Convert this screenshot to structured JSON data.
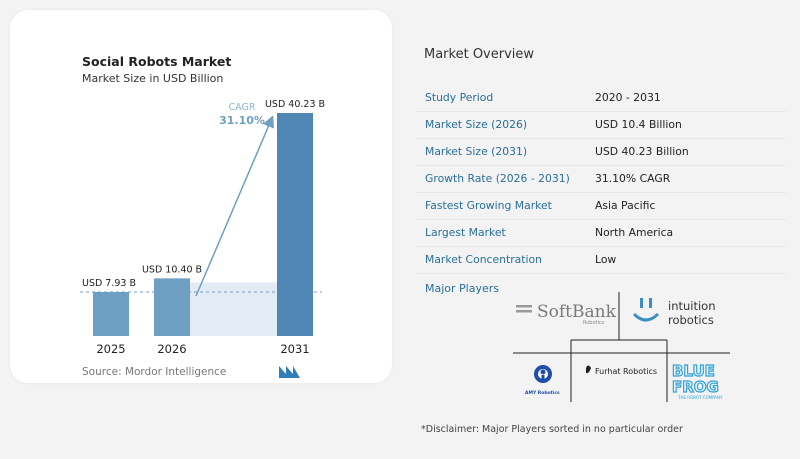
{
  "chart": {
    "title": "Social Robots Market",
    "subtitle": "Market Size in USD Billion",
    "source": "Source:  Mordor Intelligence",
    "cagr_label": "CAGR",
    "cagr_value": "31.10%"
  },
  "chart_data": {
    "type": "bar",
    "categories": [
      "2025",
      "2026",
      "2031"
    ],
    "values": [
      7.93,
      10.4,
      40.23
    ],
    "data_labels": [
      "USD 7.93 B",
      "USD 10.40 B",
      "USD 40.23 B"
    ],
    "title": "Social Robots Market",
    "subtitle": "Market Size in USD Billion",
    "xlabel": "",
    "ylabel": "",
    "annotation": "CAGR 31.10%",
    "colors": {
      "bar_light": "#6f9fc2",
      "bar_dark": "#4f86b3",
      "arrow": "#6f9fc2",
      "cagr_text": "#6f9fc2"
    }
  },
  "overview": {
    "title": "Market Overview",
    "rows": [
      {
        "key": "Study Period",
        "value": "2020 - 2031"
      },
      {
        "key": "Market Size (2026)",
        "value": "USD 10.4 Billion"
      },
      {
        "key": "Market Size (2031)",
        "value": "USD 40.23 Billion"
      },
      {
        "key": "Growth Rate (2026 - 2031)",
        "value": "31.10% CAGR"
      },
      {
        "key": "Fastest Growing Market",
        "value": "Asia Pacific"
      },
      {
        "key": "Largest Market",
        "value": "North America"
      },
      {
        "key": "Market Concentration",
        "value": "Low"
      }
    ]
  },
  "players": {
    "title": "Major Players",
    "softbank": "SoftBank",
    "softbank_sub": "Robotics",
    "intuition_1": "intuition",
    "intuition_2": "robotics",
    "amy": "AMY Robotics",
    "furhat": "Furhat Robotics",
    "bluefrog_1": "BLUE",
    "bluefrog_2": "FROG",
    "bluefrog_sub": "THE ROBOT COMPANY"
  },
  "disclaimer": "*Disclaimer: Major Players sorted in no particular order"
}
